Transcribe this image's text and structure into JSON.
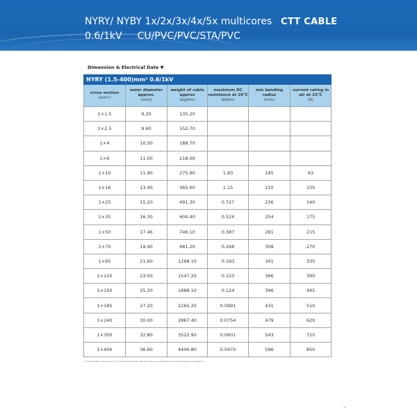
{
  "header": {
    "title_line1": "NYRY/ NYBY 1x/2x/3x/4x/5x multicores",
    "voltage": "0.6/1kV",
    "construction": "CU/PVC/PVC/STA/PVC",
    "brand": "CTT CABLE",
    "color": "#1a64b0"
  },
  "section_label": "Dimension & Electrical Date ▼",
  "table": {
    "caption": "NYRY (1.5-400)mm² 0.6/1kV",
    "columns": [
      {
        "label": "cross section",
        "unit": "(mm²)"
      },
      {
        "label": "outer diameter approx.",
        "unit": "(mm)"
      },
      {
        "label": "weight of cable approx",
        "unit": "(kg/km)"
      },
      {
        "label": "maximum DC resistance at 20℃",
        "unit": "(Ω/km)"
      },
      {
        "label": "min bending radius",
        "unit": "(mm)"
      },
      {
        "label": "current rating in air at 25℃",
        "unit": "(A)"
      }
    ],
    "rows": [
      [
        "1×1.5",
        "9.20",
        "135.20",
        "",
        "",
        ""
      ],
      [
        "1×2.5",
        "9.60",
        "152.70",
        "",
        "",
        ""
      ],
      [
        "1×4",
        "10.50",
        "188.70",
        "",
        "",
        ""
      ],
      [
        "1×6",
        "11.00",
        "218.00",
        "",
        "",
        ""
      ],
      [
        "1×10",
        "11.90",
        "275.90",
        "1.83",
        "195",
        "63"
      ],
      [
        "1×16",
        "13.40",
        "365.60",
        "1.15",
        "210",
        "105"
      ],
      [
        "1×25",
        "15.20",
        "491.30",
        "0.727",
        "236",
        "140"
      ],
      [
        "1×35",
        "16.30",
        "604.40",
        "0.524",
        "254",
        "175"
      ],
      [
        "1×50",
        "17.46",
        "746.10",
        "0.387",
        "281",
        "215"
      ],
      [
        "1×70",
        "19.40",
        "981.20",
        "0.268",
        "308",
        "270"
      ],
      [
        "1×95",
        "21.60",
        "1298.10",
        "0.193",
        "341",
        "335"
      ],
      [
        "1×120",
        "23.00",
        "1547.20",
        "0.153",
        "366",
        "390"
      ],
      [
        "1×150",
        "25.20",
        "1888.10",
        "0.124",
        "396",
        "445"
      ],
      [
        "1×185",
        "27.20",
        "2265.20",
        "0.0991",
        "431",
        "510"
      ],
      [
        "1×240",
        "30.00",
        "2867.40",
        "0.0754",
        "479",
        "620"
      ],
      [
        "1×300",
        "32.80",
        "3522.90",
        "0.0601",
        "543",
        "710"
      ],
      [
        "1×400",
        "36.60",
        "4440.80",
        "0.0470",
        "596",
        "850"
      ]
    ]
  },
  "note": "*Important Note: The ampacity of cable will be directly affected by the lay-out methods and the atmosphere temperature.",
  "page_number": "11"
}
